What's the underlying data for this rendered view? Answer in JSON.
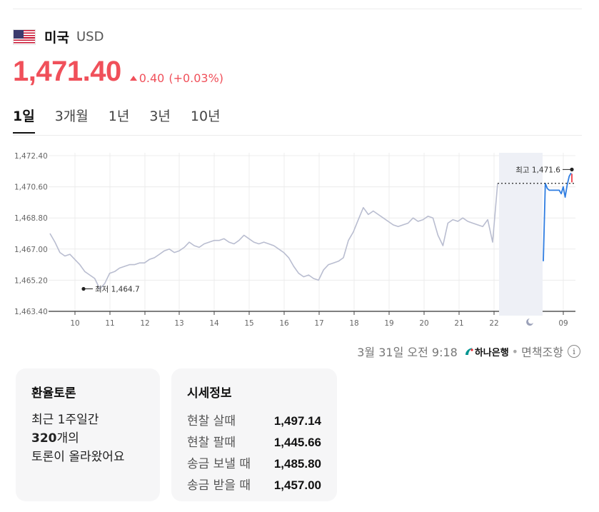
{
  "header": {
    "country": "미국",
    "currency": "USD",
    "flag_icon": "us-flag-icon"
  },
  "quote": {
    "price": "1,471.40",
    "change": "0.40",
    "change_pct": "(+0.03%)",
    "direction": "up",
    "color": "#f0505a"
  },
  "tabs": [
    {
      "label": "1일",
      "active": true
    },
    {
      "label": "3개월",
      "active": false
    },
    {
      "label": "1년",
      "active": false
    },
    {
      "label": "3년",
      "active": false
    },
    {
      "label": "10년",
      "active": false
    }
  ],
  "chart_data": {
    "type": "line",
    "y_ticks": [
      "1,472.40",
      "1,470.60",
      "1,468.80",
      "1,467.00",
      "1,465.20",
      "1,463.40"
    ],
    "ylim": [
      1463.4,
      1472.4
    ],
    "x_ticks": [
      "10",
      "11",
      "12",
      "13",
      "14",
      "15",
      "16",
      "17",
      "18",
      "19",
      "20",
      "21",
      "22",
      "09"
    ],
    "night_icon": "moon-icon",
    "low_label": "최저 1,464.7",
    "high_label": "최고 1,471.6",
    "low_value": 1464.7,
    "high_value": 1471.6,
    "series_gray_color": "#b9bdd0",
    "series_blue_color": "#2f7de1",
    "series_gray": [
      1467.9,
      1467.4,
      1466.8,
      1466.6,
      1466.7,
      1466.4,
      1466.1,
      1465.7,
      1465.5,
      1465.3,
      1464.7,
      1465.0,
      1465.6,
      1465.7,
      1465.9,
      1466.0,
      1466.1,
      1466.1,
      1466.2,
      1466.2,
      1466.4,
      1466.5,
      1466.7,
      1466.9,
      1467.0,
      1466.8,
      1466.9,
      1467.1,
      1467.4,
      1467.2,
      1467.1,
      1467.3,
      1467.4,
      1467.5,
      1467.5,
      1467.6,
      1467.4,
      1467.3,
      1467.5,
      1467.8,
      1467.6,
      1467.4,
      1467.3,
      1467.4,
      1467.3,
      1467.2,
      1467.0,
      1466.8,
      1466.5,
      1466.0,
      1465.6,
      1465.4,
      1465.5,
      1465.3,
      1465.2,
      1465.8,
      1466.1,
      1466.2,
      1466.3,
      1466.5,
      1467.5,
      1468.0,
      1468.7,
      1469.4,
      1469.0,
      1469.2,
      1469.0,
      1468.8,
      1468.6,
      1468.4,
      1468.3,
      1468.4,
      1468.5,
      1468.8,
      1468.6,
      1468.7,
      1468.9,
      1468.8,
      1467.8,
      1467.2,
      1468.5,
      1468.7,
      1468.6,
      1468.8,
      1468.6,
      1468.5,
      1468.4,
      1468.3,
      1468.7,
      1467.4,
      1470.8
    ],
    "series_blue": [
      1466.3,
      1470.8,
      1470.5,
      1470.4,
      1470.4,
      1470.4,
      1470.4,
      1470.4,
      1470.4,
      1470.2,
      1470.6,
      1470.0,
      1470.7,
      1471.2,
      1471.4
    ],
    "meta": {
      "date": "3월 31일 오전 9:18",
      "bank": "하나은행",
      "disclaimer": "면책조항"
    }
  },
  "discussion": {
    "title": "환율토론",
    "line1": "최근 1주일간",
    "count": "320",
    "count_suffix": "개의",
    "line3": "토론이 올라왔어요"
  },
  "rates": {
    "title": "시세정보",
    "items": [
      {
        "label": "현찰 살때",
        "value": "1,497.14"
      },
      {
        "label": "현찰 팔때",
        "value": "1,445.66"
      },
      {
        "label": "송금 보낼 때",
        "value": "1,485.80"
      },
      {
        "label": "송금 받을 때",
        "value": "1,457.00"
      }
    ]
  }
}
